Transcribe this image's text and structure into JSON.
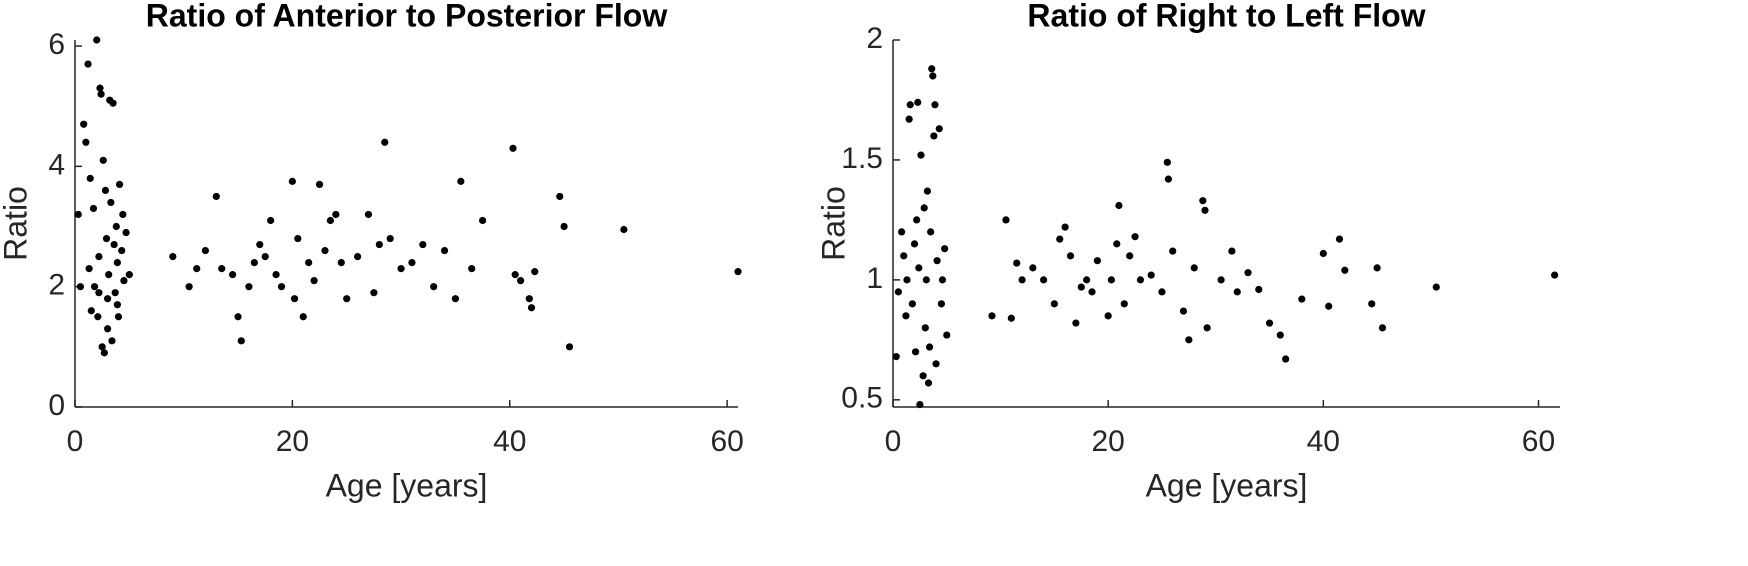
{
  "chart_data": [
    {
      "type": "scatter",
      "title": "Ratio of Anterior to Posterior Flow",
      "x_label": "Age [years]",
      "y_label": "Ratio",
      "color": "#000000",
      "xlim": [
        0,
        61
      ],
      "ylim": [
        0,
        6.1
      ],
      "xticks": [
        0,
        20,
        40,
        60
      ],
      "yticks": [
        0,
        2,
        4,
        6
      ],
      "x": [
        0.3,
        0.5,
        0.8,
        1.0,
        1.2,
        1.3,
        1.5,
        1.7,
        1.8,
        2.0,
        2.1,
        2.2,
        2.3,
        2.4,
        2.5,
        2.6,
        2.7,
        2.8,
        2.9,
        3.0,
        3.1,
        3.2,
        3.3,
        3.4,
        3.5,
        3.6,
        3.7,
        3.8,
        3.9,
        4.0,
        4.1,
        4.3,
        4.5,
        4.7,
        5.0,
        1.4,
        2.2,
        3.0,
        3.9,
        4.4,
        9,
        10.5,
        11.2,
        12,
        13,
        13.5,
        14.5,
        15,
        15.3,
        16,
        16.5,
        17,
        17.5,
        18,
        18.5,
        19,
        20,
        20.2,
        20.5,
        21,
        21.5,
        22,
        22.5,
        23,
        23.5,
        24,
        24.5,
        25,
        26,
        27,
        27.5,
        28,
        28.5,
        29,
        30,
        31,
        32,
        33,
        34,
        35,
        35.5,
        36.5,
        37.5,
        40.3,
        40.5,
        41,
        41.8,
        42,
        42.3,
        44.6,
        45,
        45.5,
        50.5,
        61
      ],
      "y": [
        3.2,
        2.0,
        4.7,
        4.4,
        5.7,
        2.3,
        1.6,
        3.3,
        2.0,
        6.1,
        1.5,
        2.5,
        5.3,
        5.2,
        1.0,
        4.1,
        0.9,
        3.6,
        2.8,
        1.8,
        2.2,
        5.1,
        3.4,
        1.1,
        5.05,
        2.7,
        1.9,
        3.0,
        2.4,
        1.5,
        3.7,
        2.6,
        2.1,
        2.9,
        2.2,
        3.8,
        1.9,
        1.3,
        1.7,
        3.2,
        2.5,
        2.0,
        2.3,
        2.6,
        3.5,
        2.3,
        2.2,
        1.5,
        1.1,
        2.0,
        2.4,
        2.7,
        2.5,
        3.1,
        2.2,
        2.0,
        3.75,
        1.8,
        2.8,
        1.5,
        2.4,
        2.1,
        3.7,
        2.6,
        3.1,
        3.2,
        2.4,
        1.8,
        2.5,
        3.2,
        1.9,
        2.7,
        4.4,
        2.8,
        2.3,
        2.4,
        2.7,
        2.0,
        2.6,
        1.8,
        3.75,
        2.3,
        3.1,
        4.3,
        2.2,
        2.1,
        1.8,
        1.65,
        2.25,
        3.5,
        3.0,
        1.0,
        2.95,
        2.25
      ]
    },
    {
      "type": "scatter",
      "title": "Ratio of Right to Left Flow",
      "x_label": "Age [years]",
      "y_label": "Ratio",
      "color": "#000000",
      "xlim": [
        0,
        62
      ],
      "ylim": [
        0.47,
        2
      ],
      "xticks": [
        0,
        20,
        40,
        60
      ],
      "yticks": [
        0.5,
        1,
        1.5,
        2
      ],
      "x": [
        0.3,
        0.5,
        0.8,
        1.0,
        1.2,
        1.5,
        1.6,
        1.8,
        2.0,
        2.1,
        2.3,
        2.4,
        2.5,
        2.6,
        2.8,
        2.9,
        3.0,
        3.1,
        3.2,
        3.3,
        3.5,
        3.6,
        3.7,
        3.8,
        3.9,
        4.0,
        4.1,
        4.3,
        4.5,
        4.8,
        5.0,
        1.3,
        2.2,
        3.4,
        4.6,
        9.2,
        10.5,
        11,
        11.5,
        12,
        13,
        14,
        15,
        15.5,
        16,
        16.5,
        17,
        17.5,
        18,
        18.5,
        19,
        20,
        20.3,
        20.8,
        21,
        21.5,
        22,
        22.5,
        23,
        24,
        25,
        25.5,
        25.6,
        26,
        27,
        27.5,
        28,
        28.8,
        29,
        29.2,
        30.5,
        31.5,
        32,
        33,
        34,
        35,
        36,
        36.5,
        38,
        40,
        40.5,
        41.5,
        42,
        44.5,
        45,
        45.5,
        50.5,
        61.5
      ],
      "y": [
        0.68,
        0.95,
        1.2,
        1.1,
        0.85,
        1.67,
        1.73,
        0.9,
        1.15,
        0.7,
        1.74,
        1.05,
        0.48,
        1.52,
        0.6,
        1.3,
        0.8,
        1.0,
        1.37,
        0.57,
        1.2,
        1.88,
        1.85,
        1.6,
        1.73,
        0.65,
        1.08,
        1.63,
        0.9,
        1.13,
        0.77,
        1.0,
        1.25,
        0.72,
        1.0,
        0.85,
        1.25,
        0.84,
        1.07,
        1.0,
        1.05,
        1.0,
        0.9,
        1.17,
        1.22,
        1.1,
        0.82,
        0.97,
        1.0,
        0.95,
        1.08,
        0.85,
        1.0,
        1.15,
        1.31,
        0.9,
        1.1,
        1.18,
        1.0,
        1.02,
        0.95,
        1.49,
        1.42,
        1.12,
        0.87,
        0.75,
        1.05,
        1.33,
        1.29,
        0.8,
        1.0,
        1.12,
        0.95,
        1.03,
        0.96,
        0.82,
        0.77,
        0.67,
        0.92,
        1.11,
        0.89,
        1.17,
        1.04,
        0.9,
        1.05,
        0.8,
        0.97,
        1.02
      ]
    }
  ]
}
